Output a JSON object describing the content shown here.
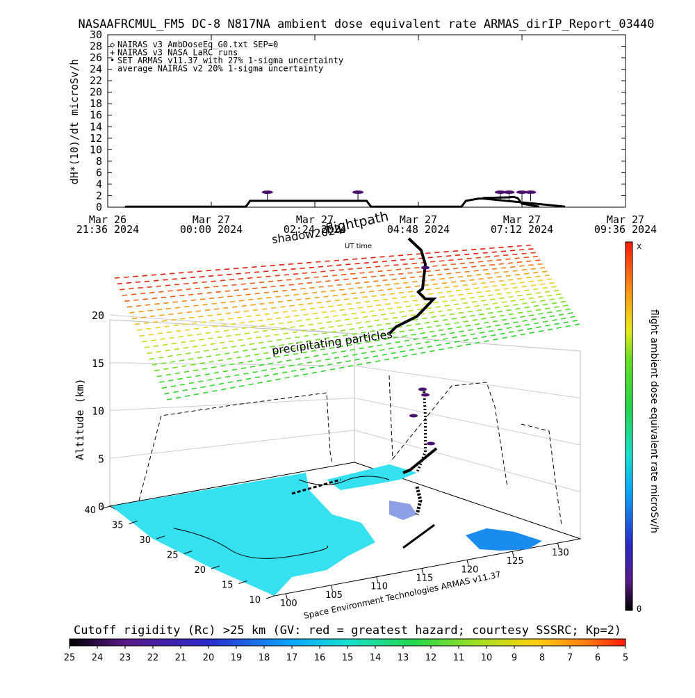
{
  "title": "NASAAFRCMUL_FM5 DC-8   N817NA ambient dose equivalent rate ARMAS_dirIP_Report_03440",
  "chart_data": [
    {
      "type": "line",
      "title": "NASAAFRCMUL_FM5 DC-8   N817NA ambient dose equivalent rate ARMAS_dirIP_Report_03440",
      "ylabel": "dH*(10)/dt microSv/h",
      "ylim": [
        0,
        30
      ],
      "yticks": [
        "0",
        "2",
        "4",
        "6",
        "8",
        "10",
        "12",
        "14",
        "16",
        "18",
        "20",
        "22",
        "24",
        "26",
        "28",
        "30"
      ],
      "xticks": [
        {
          "top": "Mar 26",
          "bottom": "21:36 2024"
        },
        {
          "top": "Mar 27",
          "bottom": "00:00 2024"
        },
        {
          "top": "Mar 27",
          "bottom": "02:24 2024"
        },
        {
          "top": "Mar 27",
          "bottom": "04:48 2024"
        },
        {
          "top": "Mar 27",
          "bottom": "07:12 2024"
        },
        {
          "top": "Mar 27",
          "bottom": "09:36 2024"
        }
      ],
      "xlim_hours": [
        0,
        12
      ],
      "legend": [
        {
          "symbol": "◇",
          "label": "NAIRAS v3 AmbDoseEq_G0.txt SEP=0"
        },
        {
          "symbol": "+",
          "label": "NAIRAS v3 NASA LaRC runs"
        },
        {
          "symbol": "•",
          "label": "SET ARMAS v11.37 with 27% 1-sigma uncertainty"
        },
        {
          "symbol": "",
          "label": "average NAIRAS v2 20% 1-sigma uncertainty"
        }
      ],
      "series": [
        {
          "name": "NAIRAS v3 AmbDoseEq_G0.txt SEP=0",
          "x": [
            0.4,
            3.2,
            3.3,
            6.0,
            6.1,
            8.2,
            8.3,
            8.6,
            8.7,
            10.6
          ],
          "y": [
            0.1,
            0.1,
            1.1,
            1.1,
            0.1,
            0.1,
            1.1,
            1.5,
            1.5,
            0.1
          ]
        },
        {
          "name": "NAIRAS v3 NASA LaRC runs",
          "x": [
            8.7,
            9.3,
            9.4,
            9.5,
            9.6,
            10.0
          ],
          "y": [
            1.6,
            1.7,
            1.8,
            1.6,
            0.6,
            0.1
          ]
        },
        {
          "name": "SET ARMAS v11.37 with 27% 1-sigma uncertainty",
          "x": [
            3.7,
            5.8,
            9.1,
            9.3,
            9.6,
            9.8
          ],
          "y": [
            2.6,
            2.6,
            2.6,
            2.6,
            2.6,
            2.6
          ]
        }
      ]
    },
    {
      "type": "heatmap",
      "ylabel": "Altitude (km)",
      "zticks": [
        "0",
        "5",
        "10",
        "15",
        "20"
      ],
      "lat_ticks": [
        "40",
        "35",
        "30",
        "25",
        "20",
        "15",
        "10"
      ],
      "lon_ticks": [
        "100",
        "105",
        "110",
        "115",
        "120",
        "125",
        "130"
      ],
      "annotations": [
        "flightpath",
        "shadow2024",
        "UT time",
        "precipitating particles"
      ],
      "colorbar": {
        "label": "flight ambient dose equivalent rate microSv/h",
        "max_label": "x",
        "min_label": "0"
      },
      "credit": "Space Environment Technologies ARMAS v11.37"
    },
    {
      "type": "heatmap",
      "title": "Cutoff rigidity (Rc) >25 km (GV: red = greatest hazard; courtesy SSSRC; Kp=2)",
      "ticks": [
        "25",
        "24",
        "23",
        "22",
        "21",
        "20",
        "19",
        "18",
        "17",
        "16",
        "15",
        "14",
        "13",
        "12",
        "11",
        "10",
        "9",
        "8",
        "7",
        "6",
        "5"
      ]
    }
  ]
}
